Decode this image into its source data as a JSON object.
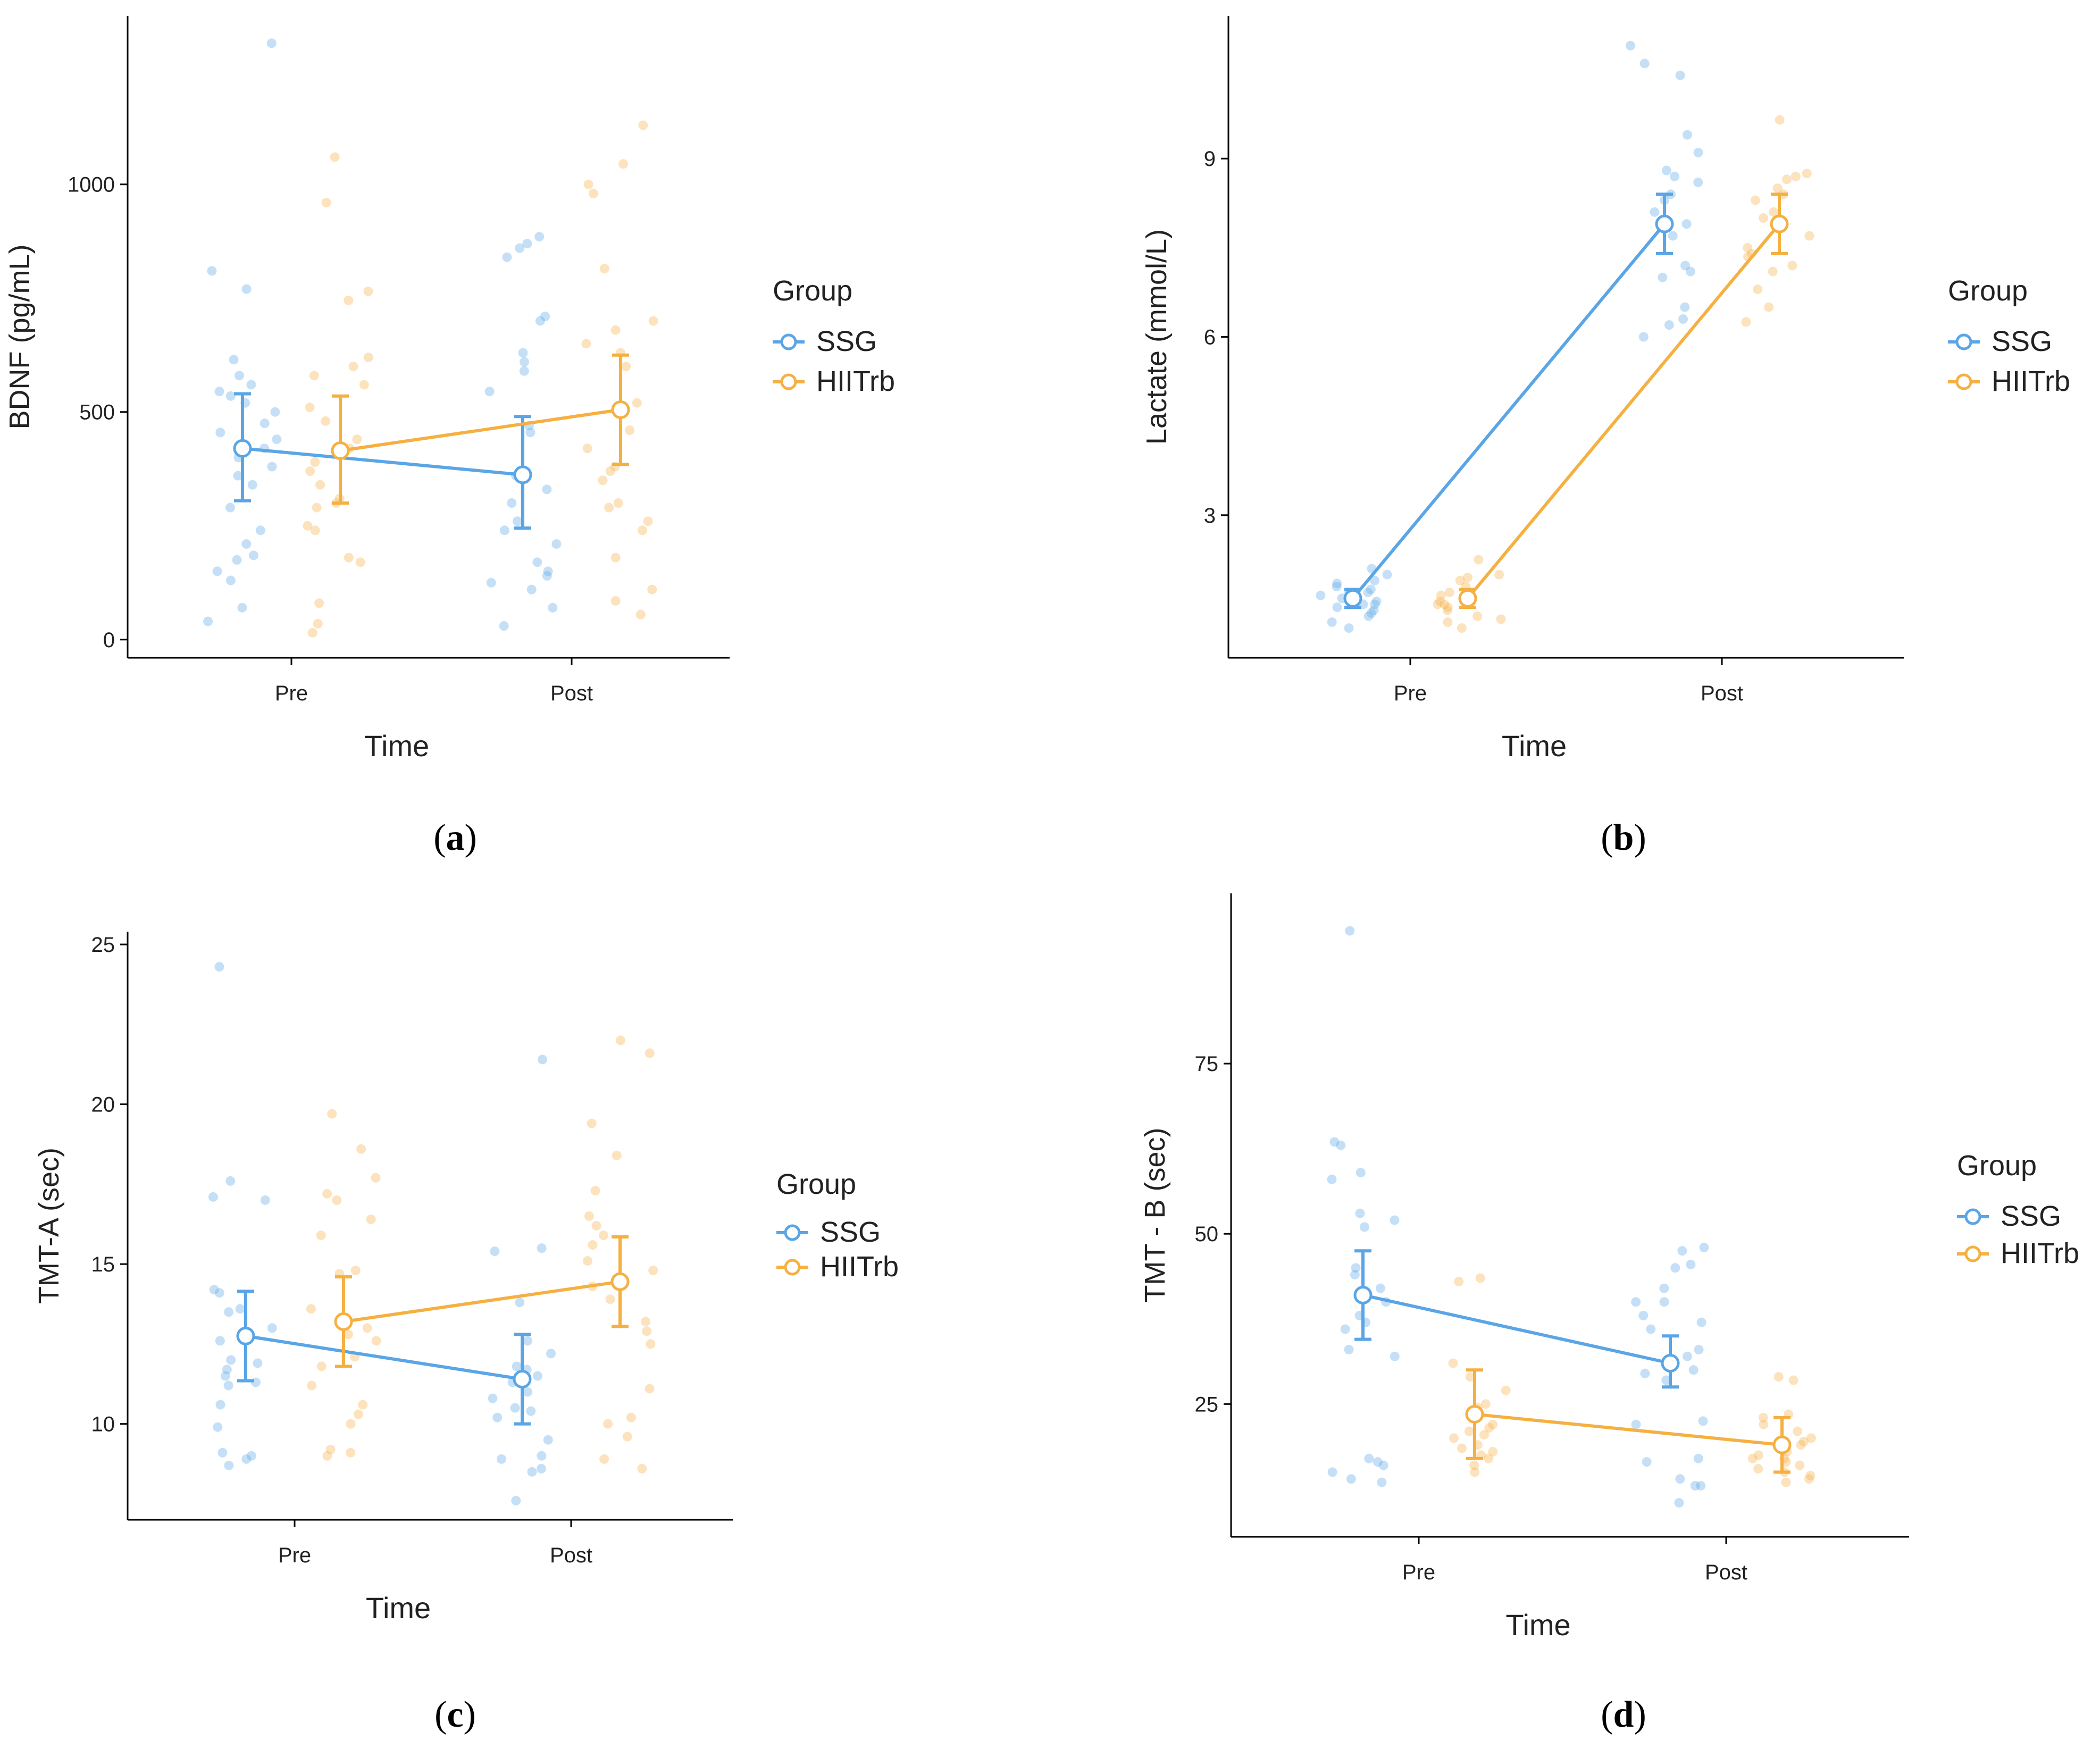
{
  "colors": {
    "ssg": "#5aa5e6",
    "hiitrb": "#f5b041",
    "axis": "#000000",
    "text": "#222222"
  },
  "chart_data": [
    {
      "panel": "a",
      "caption": "a",
      "type": "line",
      "xlabel": "Time",
      "ylabel": "BDNF (pg/mL)",
      "categories": [
        "Pre",
        "Post"
      ],
      "ylim": [
        -40,
        1370
      ],
      "yticks": [
        0,
        500,
        1000
      ],
      "legend": {
        "title": "Group",
        "entries": [
          "SSG",
          "HIITrb"
        ],
        "position": "right"
      },
      "series": [
        {
          "name": "SSG",
          "means": [
            420,
            362
          ],
          "errors": [
            [
              305,
              540
            ],
            [
              245,
              490
            ]
          ],
          "points": [
            [
              1310,
              810,
              770,
              615,
              580,
              560,
              545,
              535,
              520,
              500,
              475,
              455,
              440,
              420,
              400,
              380,
              360,
              340,
              290,
              240,
              210,
              185,
              175,
              150,
              130,
              70,
              40
            ],
            [
              885,
              870,
              860,
              840,
              710,
              700,
              630,
              610,
              590,
              545,
              470,
              455,
              360,
              330,
              300,
              260,
              240,
              210,
              170,
              150,
              140,
              125,
              110,
              70,
              30
            ]
          ]
        },
        {
          "name": "HIITrb",
          "means": [
            415,
            505
          ],
          "errors": [
            [
              300,
              535
            ],
            [
              385,
              625
            ]
          ],
          "points": [
            [
              1060,
              960,
              765,
              745,
              620,
              600,
              580,
              560,
              510,
              480,
              440,
              420,
              390,
              370,
              340,
              310,
              300,
              290,
              250,
              240,
              180,
              170,
              80,
              35,
              15
            ],
            [
              1130,
              1045,
              1000,
              980,
              815,
              700,
              680,
              650,
              630,
              600,
              520,
              460,
              420,
              380,
              370,
              350,
              300,
              290,
              260,
              240,
              180,
              110,
              85,
              55
            ]
          ]
        }
      ]
    },
    {
      "panel": "b",
      "caption": "b",
      "type": "line",
      "xlabel": "Time",
      "ylabel": "Lactate (mmol/L)",
      "categories": [
        "Pre",
        "Post"
      ],
      "ylim": [
        0.6,
        11.4
      ],
      "yticks": [
        3,
        6,
        9
      ],
      "legend": {
        "title": "Group",
        "entries": [
          "SSG",
          "HIITrb"
        ],
        "position": "right"
      },
      "series": [
        {
          "name": "SSG",
          "means": [
            1.6,
            7.9
          ],
          "errors": [
            [
              1.45,
              1.75
            ],
            [
              7.4,
              8.4
            ]
          ],
          "points": [
            [
              2.1,
              2.0,
              1.9,
              1.85,
              1.8,
              1.75,
              1.7,
              1.7,
              1.65,
              1.6,
              1.55,
              1.5,
              1.5,
              1.45,
              1.4,
              1.35,
              1.3,
              1.2,
              1.1
            ],
            [
              10.9,
              10.6,
              10.4,
              9.4,
              9.1,
              8.8,
              8.7,
              8.6,
              8.4,
              8.3,
              8.1,
              7.9,
              7.7,
              7.2,
              7.1,
              7.0,
              6.5,
              6.3,
              6.2,
              6.0
            ]
          ]
        },
        {
          "name": "HIITrb",
          "means": [
            1.6,
            7.9
          ],
          "errors": [
            [
              1.45,
              1.75
            ],
            [
              7.4,
              8.4
            ]
          ],
          "points": [
            [
              2.25,
              2.0,
              1.95,
              1.9,
              1.8,
              1.7,
              1.65,
              1.6,
              1.55,
              1.5,
              1.5,
              1.45,
              1.4,
              1.3,
              1.25,
              1.2,
              1.1
            ],
            [
              9.65,
              8.75,
              8.7,
              8.65,
              8.5,
              8.4,
              8.3,
              8.1,
              8.0,
              7.9,
              7.7,
              7.5,
              7.4,
              7.35,
              7.2,
              7.1,
              6.8,
              6.5,
              6.25
            ]
          ]
        }
      ]
    },
    {
      "panel": "c",
      "caption": "c",
      "type": "line",
      "xlabel": "Time",
      "ylabel": "TMT-A (sec)",
      "categories": [
        "Pre",
        "Post"
      ],
      "ylim": [
        7,
        25.4
      ],
      "yticks": [
        10,
        15,
        20,
        25
      ],
      "legend": {
        "title": "Group",
        "entries": [
          "SSG",
          "HIITrb"
        ],
        "position": "right"
      },
      "series": [
        {
          "name": "SSG",
          "means": [
            12.75,
            11.4
          ],
          "errors": [
            [
              11.35,
              14.15
            ],
            [
              10.0,
              12.8
            ]
          ],
          "points": [
            [
              24.3,
              17.6,
              17.1,
              17.0,
              14.2,
              14.1,
              13.6,
              13.5,
              13.0,
              12.6,
              12.0,
              11.9,
              11.7,
              11.5,
              11.3,
              11.2,
              10.6,
              9.9,
              9.1,
              9.0,
              8.9,
              8.7
            ],
            [
              21.4,
              15.5,
              15.4,
              13.8,
              12.6,
              12.2,
              11.8,
              11.7,
              11.5,
              11.3,
              11.0,
              10.8,
              10.5,
              10.4,
              10.2,
              9.5,
              9.0,
              8.9,
              8.6,
              8.5,
              7.6
            ]
          ]
        },
        {
          "name": "HIITrb",
          "means": [
            13.2,
            14.45
          ],
          "errors": [
            [
              11.8,
              14.6
            ],
            [
              13.05,
              15.85
            ]
          ],
          "points": [
            [
              19.7,
              18.6,
              17.7,
              17.2,
              17.0,
              16.4,
              15.9,
              14.8,
              14.7,
              13.6,
              13.0,
              12.8,
              12.6,
              12.1,
              11.8,
              11.2,
              10.6,
              10.3,
              10.0,
              9.2,
              9.1,
              9.0
            ],
            [
              22.0,
              21.6,
              19.4,
              18.4,
              17.3,
              16.5,
              16.2,
              15.9,
              15.6,
              15.1,
              14.8,
              14.3,
              13.9,
              13.2,
              12.9,
              12.5,
              11.1,
              10.2,
              10.0,
              9.6,
              8.9,
              8.6
            ]
          ]
        }
      ]
    },
    {
      "panel": "d",
      "caption": "d",
      "type": "line",
      "xlabel": "Time",
      "ylabel": "TMT - B (sec)",
      "categories": [
        "Pre",
        "Post"
      ],
      "ylim": [
        5.5,
        100
      ],
      "yticks": [
        25,
        50,
        75
      ],
      "legend": {
        "title": "Group",
        "entries": [
          "SSG",
          "HIITrb"
        ],
        "position": "right"
      },
      "series": [
        {
          "name": "SSG",
          "means": [
            41,
            31
          ],
          "errors": [
            [
              34.5,
              47.5
            ],
            [
              27.5,
              35
            ]
          ],
          "points": [
            [
              94.5,
              63.5,
              63,
              59,
              58,
              53,
              52,
              51,
              45,
              44,
              42,
              40,
              38,
              37,
              36,
              33,
              32,
              17,
              16.5,
              16,
              15,
              14,
              13.5
            ],
            [
              48,
              47.5,
              45.5,
              45,
              42,
              40,
              40,
              38,
              37,
              36,
              33,
              32,
              30,
              29.5,
              28.5,
              22.5,
              22,
              17,
              16.5,
              14,
              13,
              13,
              10.5
            ]
          ]
        },
        {
          "name": "HIITrb",
          "means": [
            23.5,
            19
          ],
          "errors": [
            [
              17,
              30
            ],
            [
              15,
              23
            ]
          ],
          "points": [
            [
              43.5,
              43,
              31,
              29,
              27,
              25,
              24.5,
              24,
              23,
              22,
              21.5,
              21,
              20.5,
              20,
              19,
              18.5,
              18,
              17.5,
              17,
              16,
              15
            ],
            [
              29,
              28.5,
              23.5,
              23,
              22,
              21,
              20,
              19.5,
              19,
              18.5,
              18,
              17.5,
              17,
              17,
              16.5,
              16,
              15.5,
              15,
              14.5,
              14,
              13.5
            ]
          ]
        }
      ]
    }
  ]
}
